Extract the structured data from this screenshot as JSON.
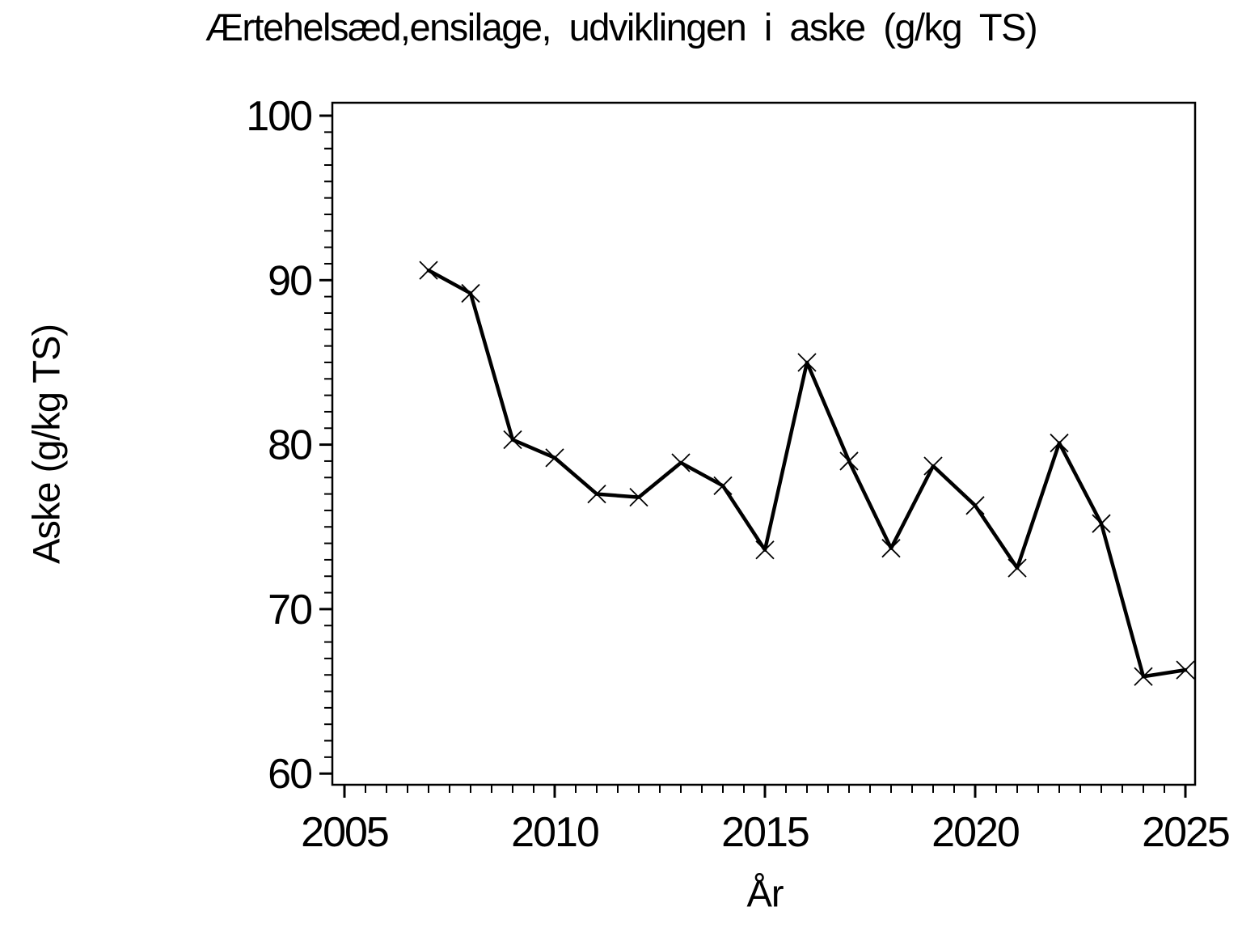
{
  "page": {
    "background_color": "#ffffff",
    "foreground_color": "#000000"
  },
  "chart_data": {
    "type": "line",
    "title": "Ærtehelsæd,ensilage, udviklingen i aske (g/kg TS)",
    "xlabel": "År",
    "ylabel": "Aske (g/kg TS)",
    "x": [
      2007,
      2008,
      2009,
      2010,
      2011,
      2012,
      2013,
      2014,
      2015,
      2016,
      2017,
      2018,
      2019,
      2020,
      2021,
      2022,
      2023,
      2024,
      2025
    ],
    "values": [
      90.6,
      89.2,
      80.3,
      79.2,
      77.0,
      76.8,
      78.9,
      77.5,
      73.6,
      85.0,
      79.0,
      73.7,
      78.7,
      76.3,
      72.5,
      80.1,
      75.2,
      65.9,
      66.3
    ],
    "xlim": [
      2005,
      2025
    ],
    "ylim": [
      60,
      100
    ],
    "x_major_ticks": [
      2005,
      2010,
      2015,
      2020,
      2025
    ],
    "y_major_ticks": [
      100,
      90,
      80,
      70,
      60
    ],
    "x_minor_step": 0.5,
    "y_minor_step": 1,
    "grid": false,
    "legend": "none",
    "marker": "x",
    "line_color": "#000000",
    "axis_color": "#000000",
    "plot_background": "#ffffff"
  }
}
